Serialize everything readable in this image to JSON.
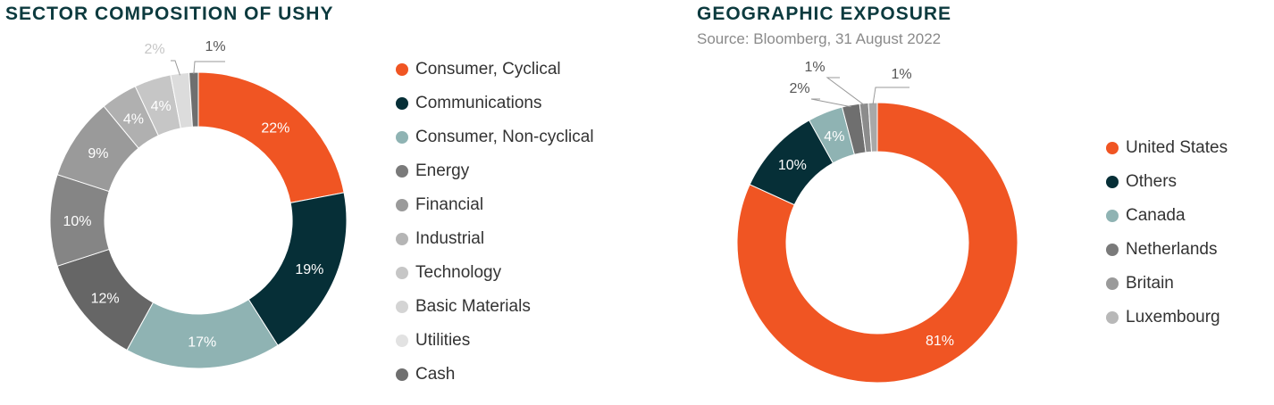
{
  "titles": {
    "sector": "SECTOR COMPOSITION OF USHY",
    "geo": "GEOGRAPHIC EXPOSURE",
    "geo_source": "Source: Bloomberg, 31 August 2022"
  },
  "chart_data": [
    {
      "type": "pie",
      "title": "SECTOR COMPOSITION OF USHY",
      "donut": true,
      "legend_position": "right",
      "categories": [
        "Consumer, Cyclical",
        "Communications",
        "Consumer, Non-cyclical",
        "Energy",
        "Financial",
        "Industrial",
        "Technology",
        "Basic Materials",
        "Utilities",
        "Cash"
      ],
      "values": [
        22,
        19,
        17,
        12,
        10,
        9,
        4,
        4,
        2,
        1
      ],
      "labels": [
        "22%",
        "19%",
        "17%",
        "12%",
        "10%",
        "9%",
        "4%",
        "4%",
        "2%",
        "1%"
      ],
      "colors": [
        "#f05523",
        "#062f37",
        "#8fb3b3",
        "#666666",
        "#858585",
        "#9a9a9a",
        "#b0b0b0",
        "#c6c6c6",
        "#dcdcdc",
        "#6f6f6f"
      ],
      "legend_colors": [
        "#f05523",
        "#062f37",
        "#8fb3b3",
        "#7a7a7a",
        "#9a9a9a",
        "#b5b5b5",
        "#c6c6c6",
        "#d4d4d4",
        "#e2e2e2",
        "#6f6f6f"
      ]
    },
    {
      "type": "pie",
      "title": "GEOGRAPHIC EXPOSURE",
      "subtitle": "Source: Bloomberg, 31 August 2022",
      "donut": true,
      "legend_position": "right",
      "categories": [
        "United States",
        "Others",
        "Canada",
        "Netherlands",
        "Britain",
        "Luxembourg"
      ],
      "values": [
        81,
        10,
        4,
        2,
        1,
        1
      ],
      "labels": [
        "81%",
        "10%",
        "4%",
        "2%",
        "1%",
        "1%"
      ],
      "colors": [
        "#f05523",
        "#062f37",
        "#8fb3b3",
        "#6f6f6f",
        "#8c8c8c",
        "#a8a8a8"
      ],
      "legend_colors": [
        "#f05523",
        "#062f37",
        "#8fb3b3",
        "#7a7a7a",
        "#9a9a9a",
        "#b8b8b8"
      ]
    }
  ]
}
